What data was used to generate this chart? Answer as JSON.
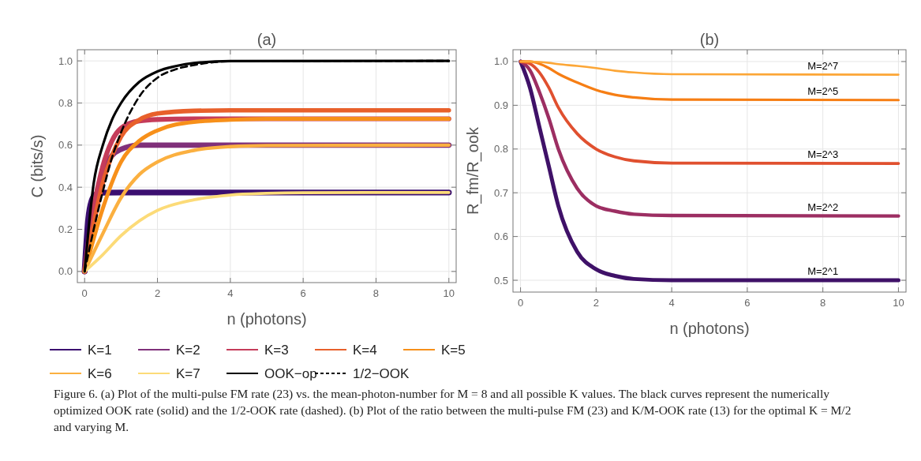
{
  "chart_data": [
    {
      "type": "line",
      "title": "(a)",
      "xlabel": "n (photons)",
      "ylabel": "C (bits/s)",
      "xlim": [
        -0.2,
        10.2
      ],
      "ylim": [
        -0.053,
        1.053
      ],
      "xticks": [
        0,
        2,
        4,
        6,
        8,
        10
      ],
      "yticks": [
        {
          "value": 0,
          "label": "0.0"
        },
        {
          "value": 0.2,
          "label": "0.2"
        },
        {
          "value": 0.4,
          "label": "0.4"
        },
        {
          "value": 0.6,
          "label": "0.6"
        },
        {
          "value": 0.8,
          "label": "0.8"
        },
        {
          "value": 1,
          "label": "1.0"
        }
      ],
      "grid": true,
      "legend": "bottom",
      "line_style": "solid",
      "series": [
        {
          "name": "K=1",
          "color": "#3b0f70",
          "x": [
            0,
            0.1,
            0.2,
            0.3,
            0.5,
            1,
            10
          ],
          "values": [
            0,
            0.25,
            0.34,
            0.365,
            0.374,
            0.375,
            0.375
          ]
        },
        {
          "name": "K=2",
          "color": "#80307a",
          "x": [
            0,
            0.25,
            0.5,
            0.75,
            1,
            1.5,
            2,
            3,
            10
          ],
          "values": [
            0,
            0.3,
            0.47,
            0.55,
            0.58,
            0.6,
            0.6,
            0.6,
            0.6
          ]
        },
        {
          "name": "K=3",
          "color": "#c53c5a",
          "x": [
            0,
            0.25,
            0.5,
            0.75,
            1,
            1.5,
            2,
            3,
            10
          ],
          "values": [
            0,
            0.3,
            0.5,
            0.62,
            0.68,
            0.715,
            0.722,
            0.725,
            0.725
          ]
        },
        {
          "name": "K=4",
          "color": "#e8602b",
          "x": [
            0,
            0.5,
            1,
            1.5,
            2,
            3,
            4,
            10
          ],
          "values": [
            0,
            0.42,
            0.64,
            0.72,
            0.75,
            0.763,
            0.765,
            0.765
          ]
        },
        {
          "name": "K=5",
          "color": "#f7901a",
          "x": [
            0,
            0.5,
            1,
            1.5,
            2,
            3,
            4,
            5,
            10
          ],
          "values": [
            0,
            0.3,
            0.52,
            0.62,
            0.67,
            0.71,
            0.72,
            0.725,
            0.725
          ]
        },
        {
          "name": "K=6",
          "color": "#fbb040",
          "x": [
            0,
            0.5,
            1,
            1.5,
            2,
            3,
            4,
            5,
            10
          ],
          "values": [
            0,
            0.18,
            0.35,
            0.46,
            0.52,
            0.575,
            0.593,
            0.598,
            0.6
          ]
        },
        {
          "name": "K=7",
          "color": "#fcdb78",
          "x": [
            0,
            0.5,
            1,
            1.5,
            2,
            3,
            4,
            5,
            6,
            10
          ],
          "values": [
            0,
            0.08,
            0.17,
            0.24,
            0.29,
            0.34,
            0.363,
            0.371,
            0.374,
            0.375
          ]
        },
        {
          "name": "OOK−op",
          "color": "#000000",
          "x": [
            0,
            0.25,
            0.5,
            0.75,
            1,
            1.5,
            2,
            2.5,
            3,
            4,
            10
          ],
          "values": [
            0,
            0.42,
            0.6,
            0.72,
            0.8,
            0.9,
            0.95,
            0.975,
            0.99,
            0.999,
            1
          ]
        },
        {
          "name": "1/2−OOK",
          "color": "#000000",
          "line_style": "dashed",
          "x": [
            0,
            0.25,
            0.5,
            0.75,
            1,
            1.5,
            2,
            2.5,
            3,
            4,
            10
          ],
          "values": [
            0,
            0.2,
            0.38,
            0.54,
            0.66,
            0.83,
            0.92,
            0.96,
            0.98,
            0.998,
            1
          ]
        }
      ],
      "annotations": [
        "Figure 6. (a) Plot of the multi-pulse FM rate (23) vs. the mean-photon-number for M = 8 and all possible K values. The black curves represent the numerically optimized OOK rate (solid) and the 1/2-OOK rate (dashed). (b) Plot of the ratio between the multi-pulse FM (23) and K/M-OOK rate (13) for the optimal K = M/2 and varying M."
      ]
    },
    {
      "type": "line",
      "title": "(b)",
      "xlabel": "n (photons)",
      "ylabel": "R_fm/R_ook",
      "xlim": [
        -0.2,
        10.2
      ],
      "ylim": [
        0.473,
        1.027
      ],
      "xticks": [
        0,
        2,
        4,
        6,
        8,
        10
      ],
      "yticks": [
        {
          "value": 0.5,
          "label": "0.5"
        },
        {
          "value": 0.6,
          "label": "0.6"
        },
        {
          "value": 0.7,
          "label": "0.7"
        },
        {
          "value": 0.8,
          "label": "0.8"
        },
        {
          "value": 0.9,
          "label": "0.9"
        },
        {
          "value": 1,
          "label": "1.0"
        }
      ],
      "grid": true,
      "line_style": "solid",
      "series": [
        {
          "name": "M=2^1",
          "color": "#3f1168",
          "x": [
            0,
            0.25,
            0.5,
            0.75,
            1,
            1.5,
            2,
            2.5,
            3,
            4,
            10
          ],
          "values": [
            1,
            0.94,
            0.85,
            0.76,
            0.67,
            0.565,
            0.525,
            0.51,
            0.503,
            0.5,
            0.5
          ]
        },
        {
          "name": "M=2^2",
          "color": "#9c2e62",
          "x": [
            0,
            0.25,
            0.5,
            0.75,
            1,
            1.5,
            2,
            2.5,
            3,
            4,
            10
          ],
          "values": [
            1,
            0.98,
            0.93,
            0.87,
            0.8,
            0.71,
            0.67,
            0.658,
            0.651,
            0.648,
            0.647
          ]
        },
        {
          "name": "M=2^3",
          "color": "#e0502f",
          "x": [
            0,
            0.25,
            0.5,
            0.75,
            1,
            1.5,
            2,
            2.5,
            3,
            4,
            10
          ],
          "values": [
            1,
            0.995,
            0.975,
            0.94,
            0.895,
            0.835,
            0.8,
            0.782,
            0.773,
            0.768,
            0.767
          ]
        },
        {
          "name": "M=2^5",
          "color": "#f67e14",
          "x": [
            0,
            0.25,
            0.5,
            0.75,
            1,
            1.5,
            2,
            2.5,
            3,
            4,
            10
          ],
          "values": [
            1,
            1,
            0.995,
            0.985,
            0.972,
            0.952,
            0.935,
            0.924,
            0.918,
            0.913,
            0.912
          ]
        },
        {
          "name": "M=2^7",
          "color": "#fca636",
          "x": [
            0,
            0.25,
            0.5,
            0.75,
            1,
            1.5,
            2,
            2.5,
            3,
            4,
            10
          ],
          "values": [
            1,
            1,
            0.999,
            0.997,
            0.994,
            0.99,
            0.985,
            0.979,
            0.975,
            0.971,
            0.97
          ]
        }
      ]
    }
  ]
}
